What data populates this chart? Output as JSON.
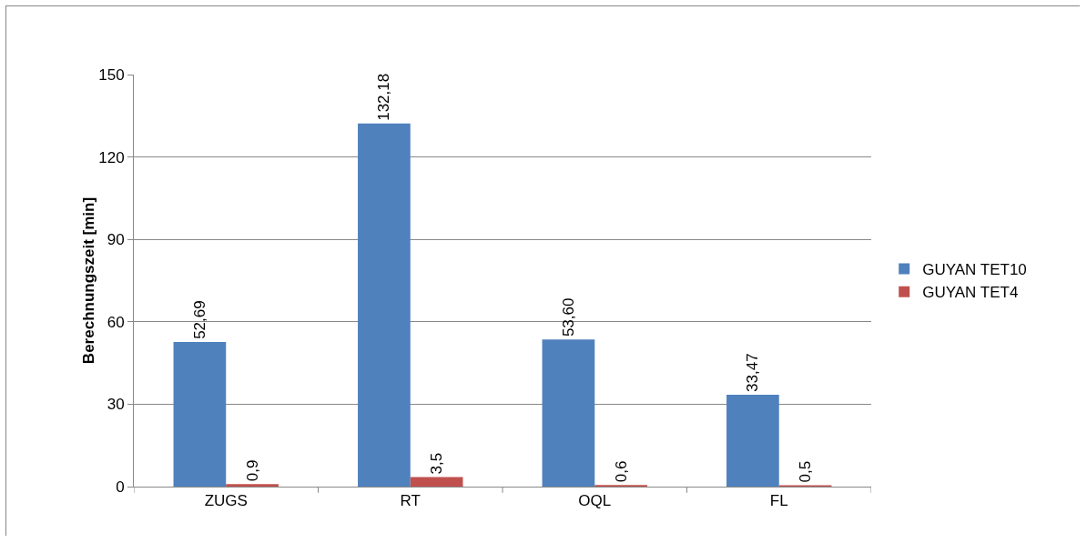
{
  "chart_data": {
    "type": "bar",
    "ylabel": "Berechnungszeit [min]",
    "categories": [
      "ZUGS",
      "RT",
      "OQL",
      "FL"
    ],
    "series": [
      {
        "name": "GUYAN TET10",
        "color": "#4f81bd",
        "values": [
          52.69,
          132.18,
          53.6,
          33.47
        ],
        "value_labels": [
          "52,69",
          "132,18",
          "53,60",
          "33,47"
        ]
      },
      {
        "name": "GUYAN TET4",
        "color": "#c0504d",
        "values": [
          0.9,
          3.5,
          0.6,
          0.5
        ],
        "value_labels": [
          "0,9",
          "3,5",
          "0,6",
          "0,5"
        ]
      }
    ],
    "ylim": [
      0,
      150
    ],
    "yticks": [
      0,
      30,
      60,
      90,
      120,
      150
    ],
    "grid": "y",
    "legend": "right"
  }
}
